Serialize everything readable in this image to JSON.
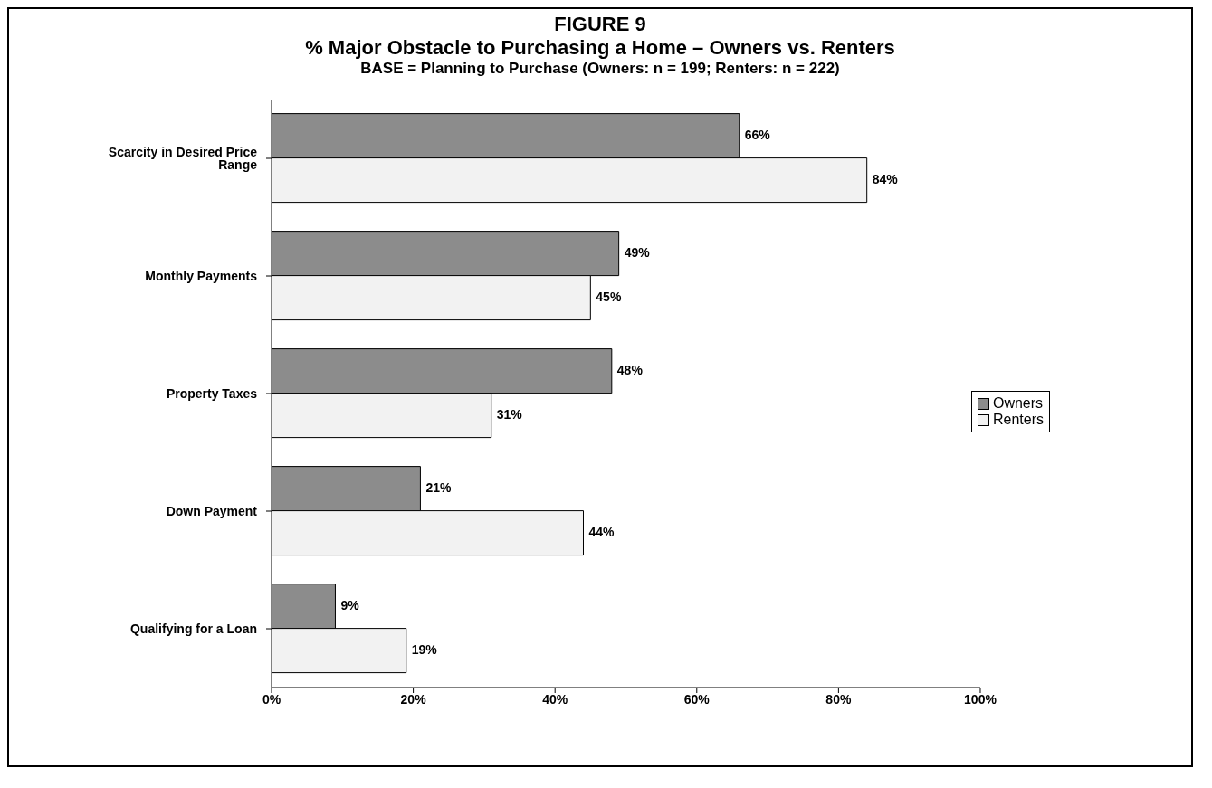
{
  "chart_data": {
    "type": "bar",
    "orientation": "horizontal",
    "title": "FIGURE 9",
    "subtitle": "% Major Obstacle to Purchasing a Home – Owners vs. Renters",
    "annotations": [
      "BASE = Planning to Purchase (Owners: n = 199; Renters: n = 222)"
    ],
    "categories": [
      "Scarcity in Desired Price Range",
      "Monthly Payments",
      "Property Taxes",
      "Down Payment",
      "Qualifying for a Loan"
    ],
    "series": [
      {
        "name": "Owners",
        "color": "#8c8c8c",
        "values": [
          66,
          49,
          48,
          21,
          9
        ],
        "value_labels": [
          "66%",
          "49%",
          "48%",
          "21%",
          "9%"
        ]
      },
      {
        "name": "Renters",
        "color": "#f2f2f2",
        "values": [
          84,
          45,
          31,
          44,
          19
        ],
        "value_labels": [
          "84%",
          "45%",
          "31%",
          "44%",
          "19%"
        ]
      }
    ],
    "xlim": [
      0,
      100
    ],
    "xticks": [
      {
        "value": 0,
        "label": "0%"
      },
      {
        "value": 20,
        "label": "20%"
      },
      {
        "value": 40,
        "label": "40%"
      },
      {
        "value": 60,
        "label": "60%"
      },
      {
        "value": 80,
        "label": "80%"
      },
      {
        "value": 100,
        "label": "100%"
      }
    ],
    "legend": "right",
    "grid": false
  }
}
